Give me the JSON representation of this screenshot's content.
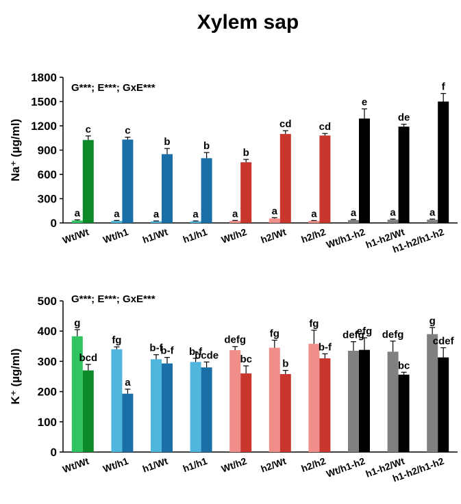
{
  "figure_title": "Xylem sap",
  "chart_data": [
    {
      "type": "bar",
      "ylabel": "Na⁺ (µg/ml)",
      "ylim": [
        0,
        1800
      ],
      "yticks": [
        0,
        300,
        600,
        900,
        1200,
        1500,
        1800
      ],
      "stat_text": "G***; E***; GxE***",
      "categories": [
        "Wt/Wt",
        "Wt/h1",
        "h1/Wt",
        "h1/h1",
        "Wt/h2",
        "h2/Wt",
        "h2/h2",
        "Wt/h1-h2",
        "h1-h2/Wt",
        "h1-h2/h1-h2"
      ],
      "series": [
        {
          "values": [
            30,
            25,
            20,
            20,
            25,
            55,
            25,
            35,
            40,
            40
          ],
          "errors": [
            8,
            6,
            5,
            5,
            6,
            10,
            5,
            8,
            8,
            8
          ],
          "labels": [
            "a",
            "a",
            "a",
            "a",
            "a",
            "a",
            "a",
            "a",
            "a",
            "a"
          ],
          "colors": [
            "#2fc45f",
            "#4fb6dd",
            "#4fb6dd",
            "#4fb6dd",
            "#f08f8a",
            "#f08f8a",
            "#f08f8a",
            "#808080",
            "#808080",
            "#808080"
          ]
        },
        {
          "values": [
            1025,
            1030,
            850,
            800,
            750,
            1100,
            1080,
            1290,
            1190,
            1500
          ],
          "errors": [
            50,
            30,
            70,
            70,
            35,
            40,
            25,
            120,
            30,
            100
          ],
          "labels": [
            "c",
            "c",
            "b",
            "b",
            "b",
            "cd",
            "cd",
            "e",
            "de",
            "f"
          ],
          "colors": [
            "#0c8a2a",
            "#1a6fa6",
            "#1a6fa6",
            "#1a6fa6",
            "#c9362e",
            "#c9362e",
            "#c9362e",
            "#000000",
            "#000000",
            "#000000"
          ]
        }
      ]
    },
    {
      "type": "bar",
      "ylabel": "K⁺ (µg/ml)",
      "ylim": [
        0,
        500
      ],
      "yticks": [
        0,
        100,
        200,
        300,
        400,
        500
      ],
      "stat_text": "G***; E***; GxE***",
      "categories": [
        "Wt/Wt",
        "Wt/h1",
        "h1/Wt",
        "h1/h1",
        "Wt/h2",
        "h2/Wt",
        "h2/h2",
        "Wt/h1-h2",
        "h1-h2/Wt",
        "h1-h2/h1-h2"
      ],
      "series": [
        {
          "values": [
            383,
            340,
            307,
            298,
            337,
            345,
            358,
            335,
            332,
            390
          ],
          "errors": [
            22,
            8,
            15,
            12,
            12,
            25,
            45,
            30,
            35,
            22
          ],
          "labels": [
            "g",
            "fg",
            "b-f",
            "b-f",
            "defg",
            "fg",
            "fg",
            "defg",
            "defg",
            "g"
          ],
          "colors": [
            "#2fc45f",
            "#4fb6dd",
            "#4fb6dd",
            "#4fb6dd",
            "#f08f8a",
            "#f08f8a",
            "#f08f8a",
            "#808080",
            "#808080",
            "#808080"
          ]
        },
        {
          "values": [
            270,
            193,
            293,
            280,
            260,
            258,
            310,
            338,
            256,
            313
          ],
          "errors": [
            20,
            15,
            20,
            18,
            25,
            12,
            15,
            40,
            8,
            32
          ],
          "labels": [
            "bcd",
            "a",
            "b-f",
            "bcde",
            "bc",
            "b",
            "b-f",
            "efg",
            "bc",
            "cdef"
          ],
          "colors": [
            "#0c8a2a",
            "#1a6fa6",
            "#1a6fa6",
            "#1a6fa6",
            "#c9362e",
            "#c9362e",
            "#c9362e",
            "#000000",
            "#000000",
            "#000000"
          ]
        }
      ]
    }
  ]
}
